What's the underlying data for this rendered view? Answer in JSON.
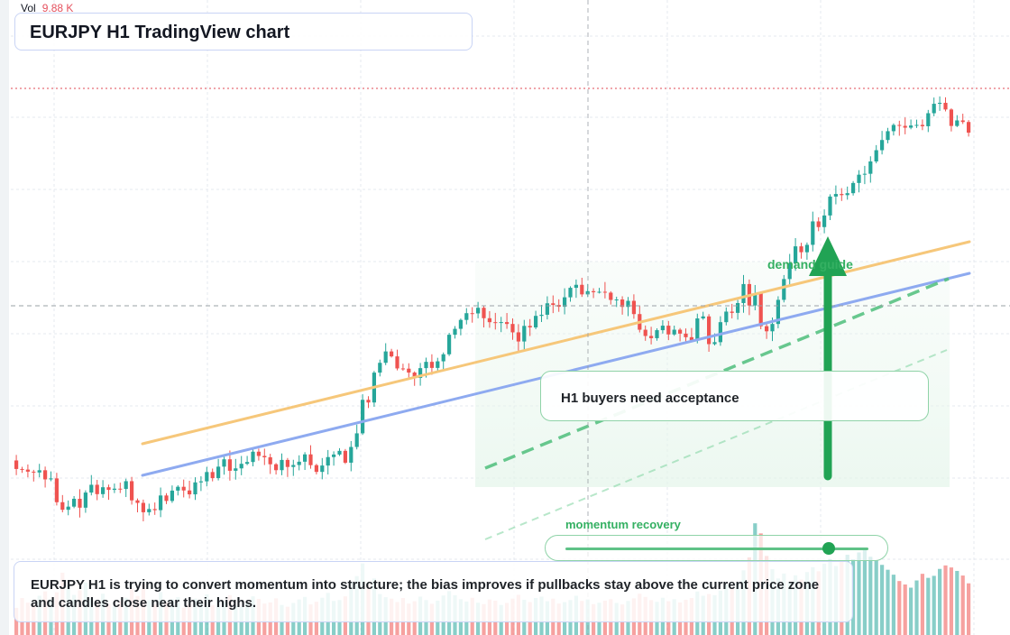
{
  "app": {
    "symbol": "EURJPY",
    "timeframe": "H1",
    "title": "EURJPY H1 TradingView chart"
  },
  "volume_legend": {
    "label": "Vol",
    "value": "9.88 K"
  },
  "annotations": {
    "buyers_note": "H1 buyers need acceptance",
    "demand_label": "demand guide",
    "momentum_label": "momentum recovery",
    "momentum_level": 0.87,
    "summary": "EURJPY H1 is trying to convert momentum into structure; the bias improves if pullbacks stay above the current price zone and candles close near their highs."
  },
  "colors": {
    "bull": "#26a69a",
    "bear": "#ef5350",
    "accent_green": "#21a354",
    "upper_trend": "#f6c77a",
    "lower_trend": "#8eaaf0",
    "last_price_line": "#e04a55"
  },
  "chart_data": {
    "type": "candlestick",
    "series": "price",
    "bars": 166,
    "open": [
      54.66,
      53.52,
      53.44,
      53.16,
      53.05,
      53.35,
      52.13,
      52.26,
      49.08,
      48.07,
      48.49,
      49.54,
      48.35,
      50.37,
      51.41,
      50.16,
      51.08,
      50.73,
      50.89,
      50.85,
      51.89,
      49.33,
      48.99,
      47.74,
      48.17,
      48.02,
      49.98,
      49.25,
      50.63,
      51.14,
      50.65,
      50.13,
      51.73,
      51.87,
      53.11,
      52.3,
      53.83,
      54.81,
      53.28,
      53.6,
      54.21,
      54.45,
      55.83,
      55.26,
      55.08,
      54.15,
      53.36,
      54.73,
      53.79,
      54.05,
      54.49,
      55.47,
      54.03,
      53.13,
      53.98,
      55.11,
      55.45,
      55.94,
      54.36,
      56.46,
      58.28,
      62.76,
      62.4,
      66.39,
      67.7,
      69.22,
      68.56,
      66.95,
      66.92,
      66.4,
      65.68,
      66.99,
      67.83,
      67.02,
      67.9,
      68.84,
      71.45,
      72.24,
      73.43,
      74.33,
      74.3,
      75.05,
      73.66,
      73.13,
      73.11,
      73.14,
      72.89,
      71.77,
      70.55,
      72.63,
      72.43,
      73.97,
      74.12,
      75.65,
      75.43,
      75.19,
      76.45,
      77.72,
      78.12,
      76.84,
      77.27,
      77.13,
      77.19,
      77.07,
      76.1,
      76.16,
      75.17,
      75.98,
      74.21,
      72.12,
      71.29,
      70.99,
      72.06,
      72.66,
      71.49,
      72.12,
      71.6,
      71.12,
      70.72,
      73.63,
      73.9,
      70.2,
      70.46,
      73.13,
      74.54,
      74.37,
      75.68,
      78.22,
      75.36,
      76.98,
      72.59,
      71.91,
      72.89,
      76.11,
      78.89,
      80.99,
      83.26,
      82.47,
      83.46,
      86.59,
      85.83,
      87.38,
      89.91,
      90.25,
      90.1,
      90.36,
      91.72,
      92.83,
      92.95,
      94.6,
      96.1,
      97.46,
      98.64,
      99.47,
      99.35,
      99.11,
      99.4,
      99.48,
      99.3,
      101.04,
      102.3,
      102.43,
      101.54,
      99.34,
      100.08,
      99.87
    ],
    "close": [
      53.52,
      53.44,
      53.16,
      53.05,
      53.35,
      52.13,
      52.26,
      49.08,
      48.07,
      48.49,
      49.54,
      48.35,
      50.37,
      51.41,
      50.16,
      51.08,
      50.73,
      50.89,
      50.85,
      51.89,
      49.33,
      48.99,
      47.74,
      48.17,
      48.02,
      49.98,
      49.25,
      50.63,
      51.14,
      50.65,
      50.13,
      51.73,
      51.87,
      53.11,
      52.3,
      53.83,
      54.81,
      53.28,
      53.6,
      54.21,
      54.45,
      55.83,
      55.26,
      55.08,
      54.15,
      53.36,
      54.73,
      53.79,
      54.05,
      54.49,
      55.47,
      54.03,
      53.13,
      53.98,
      55.11,
      55.45,
      55.94,
      54.36,
      56.46,
      58.28,
      62.76,
      62.4,
      66.39,
      67.7,
      69.22,
      68.56,
      66.95,
      66.92,
      66.4,
      65.68,
      66.99,
      67.83,
      67.02,
      67.9,
      68.84,
      71.45,
      72.24,
      73.43,
      74.33,
      74.3,
      75.05,
      73.66,
      73.13,
      73.11,
      73.14,
      72.89,
      71.77,
      70.55,
      72.63,
      72.43,
      73.97,
      74.12,
      75.65,
      75.43,
      75.19,
      76.45,
      77.72,
      78.12,
      76.84,
      77.27,
      77.13,
      77.19,
      77.07,
      76.1,
      76.16,
      75.17,
      75.98,
      74.21,
      72.12,
      71.29,
      70.99,
      72.06,
      72.66,
      71.49,
      72.12,
      71.6,
      71.12,
      70.72,
      73.63,
      73.9,
      70.2,
      70.46,
      73.13,
      74.54,
      74.37,
      75.68,
      78.22,
      75.36,
      76.98,
      72.59,
      71.91,
      72.89,
      76.11,
      78.89,
      80.99,
      83.26,
      82.47,
      83.46,
      86.59,
      85.83,
      87.38,
      89.91,
      90.25,
      90.1,
      90.36,
      91.72,
      92.83,
      92.95,
      94.6,
      96.1,
      97.46,
      98.64,
      99.47,
      99.35,
      99.11,
      99.4,
      99.48,
      99.3,
      101.04,
      102.3,
      102.43,
      101.54,
      99.34,
      100.08,
      99.87,
      98.44
    ],
    "volume": [
      9.4,
      12.8,
      11.2,
      10.5,
      13.6,
      15.1,
      12.4,
      14.8,
      21.6,
      17.3,
      13.9,
      15.5,
      18.2,
      12.7,
      11.4,
      14.3,
      10.8,
      9.9,
      11.7,
      12.9,
      16.2,
      13.5,
      17.8,
      12.1,
      10.6,
      14.9,
      11.3,
      12.4,
      13.1,
      9.5,
      10.8,
      12.6,
      11.9,
      14.1,
      10.3,
      12.2,
      11.6,
      13.8,
      10.1,
      9.7,
      11.2,
      13.4,
      12.5,
      10.9,
      11.3,
      12.7,
      10.4,
      9.8,
      11.1,
      12.3,
      13.2,
      10.6,
      11.5,
      12.9,
      14.6,
      11.8,
      12.1,
      13.4,
      18.5,
      20.4,
      24.8,
      17.3,
      19.6,
      14.2,
      13.1,
      12.6,
      11.4,
      12.8,
      10.9,
      11.7,
      13.3,
      12.1,
      10.8,
      11.9,
      13.7,
      15.2,
      13.8,
      12.4,
      11.6,
      12.9,
      11.2,
      10.7,
      12.3,
      11.9,
      10.4,
      11.1,
      12.6,
      13.9,
      12.2,
      11.4,
      12.8,
      13.3,
      11.7,
      12.6,
      10.9,
      11.4,
      12.1,
      13.6,
      11.8,
      12.3,
      10.7,
      11.2,
      11.9,
      12.4,
      11.1,
      10.6,
      11.8,
      12.7,
      14.3,
      13.2,
      12.1,
      11.5,
      12.9,
      11.7,
      12.4,
      11.3,
      12.2,
      12.8,
      15.1,
      13.6,
      14.2,
      13.8,
      15.4,
      17.6,
      16.2,
      18.1,
      22.4,
      26.9,
      38.7,
      35.2,
      27.4,
      22.8,
      19.6,
      21.3,
      18.4,
      20.7,
      19.2,
      21.8,
      23.5,
      22.1,
      24.7,
      26.3,
      23.9,
      25.4,
      27.8,
      26.2,
      28.6,
      29.4,
      27.1,
      25.8,
      24.3,
      22.6,
      20.9,
      18.7,
      17.5,
      16.4,
      18.9,
      21.2,
      19.8,
      20.5,
      22.9,
      24.1,
      23.4,
      22.2,
      20.6,
      17.9
    ]
  }
}
